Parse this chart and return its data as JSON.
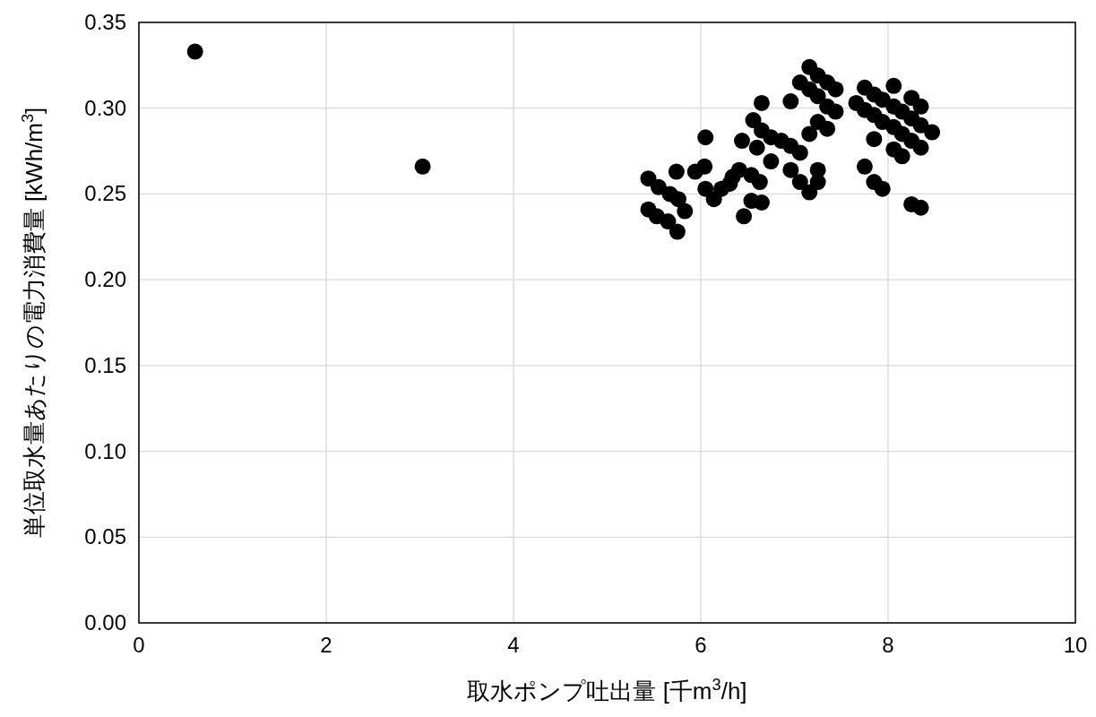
{
  "chart_data": {
    "type": "scatter",
    "xlabel": "取水ポンプ吐出量 [千m$^{3}$/h]",
    "ylabel": "単位取水量あたりの電力消費量 [kWh/m$^{3}$]",
    "xlim": [
      0,
      10
    ],
    "xticks": [
      0,
      2,
      4,
      6,
      8,
      10
    ],
    "ylim": [
      0,
      0.35
    ],
    "yticks": [
      {
        "value": 0,
        "label": "0.00"
      },
      {
        "value": 0.05,
        "label": "0.05"
      },
      {
        "value": 0.1,
        "label": "0.10"
      },
      {
        "value": 0.15,
        "label": "0.15"
      },
      {
        "value": 0.2,
        "label": "0.20"
      },
      {
        "value": 0.25,
        "label": "0.25"
      },
      {
        "value": 0.3,
        "label": "0.30"
      },
      {
        "value": 0.35,
        "label": "0.35"
      }
    ],
    "grid": true,
    "marker": "circle",
    "series": [
      {
        "color": "#000000",
        "x": [
          0.6,
          3.03,
          5.44,
          5.44,
          5.55,
          5.53,
          5.65,
          5.67,
          5.74,
          5.75,
          5.76,
          5.83,
          5.94,
          6.05,
          6.04,
          6.05,
          6.14,
          6.22,
          6.31,
          6.34,
          6.41,
          6.44,
          6.46,
          6.54,
          6.54,
          6.56,
          6.6,
          6.65,
          6.65,
          6.65,
          6.63,
          6.75,
          6.75,
          6.86,
          6.96,
          6.96,
          6.96,
          7.06,
          7.06,
          7.06,
          7.16,
          7.16,
          7.16,
          7.16,
          7.25,
          7.25,
          7.25,
          7.25,
          7.25,
          7.35,
          7.35,
          7.35,
          7.44,
          7.44,
          7.66,
          7.75,
          7.75,
          7.75,
          7.85,
          7.85,
          7.85,
          7.85,
          7.94,
          7.94,
          7.94,
          8.06,
          8.06,
          8.06,
          8.06,
          8.15,
          8.15,
          8.15,
          8.25,
          8.25,
          8.25,
          8.25,
          8.35,
          8.35,
          8.35,
          8.35,
          8.47
        ],
        "values": [
          0.333,
          0.266,
          0.259,
          0.241,
          0.254,
          0.237,
          0.234,
          0.25,
          0.263,
          0.228,
          0.247,
          0.24,
          0.263,
          0.283,
          0.266,
          0.253,
          0.247,
          0.253,
          0.256,
          0.26,
          0.264,
          0.281,
          0.237,
          0.246,
          0.261,
          0.293,
          0.277,
          0.245,
          0.303,
          0.287,
          0.257,
          0.269,
          0.283,
          0.281,
          0.278,
          0.304,
          0.264,
          0.315,
          0.274,
          0.257,
          0.324,
          0.311,
          0.285,
          0.251,
          0.319,
          0.307,
          0.292,
          0.264,
          0.257,
          0.315,
          0.301,
          0.288,
          0.311,
          0.298,
          0.303,
          0.312,
          0.299,
          0.266,
          0.308,
          0.296,
          0.282,
          0.257,
          0.305,
          0.292,
          0.253,
          0.313,
          0.301,
          0.289,
          0.276,
          0.298,
          0.285,
          0.272,
          0.306,
          0.294,
          0.281,
          0.244,
          0.301,
          0.29,
          0.277,
          0.242,
          0.286
        ]
      }
    ]
  }
}
